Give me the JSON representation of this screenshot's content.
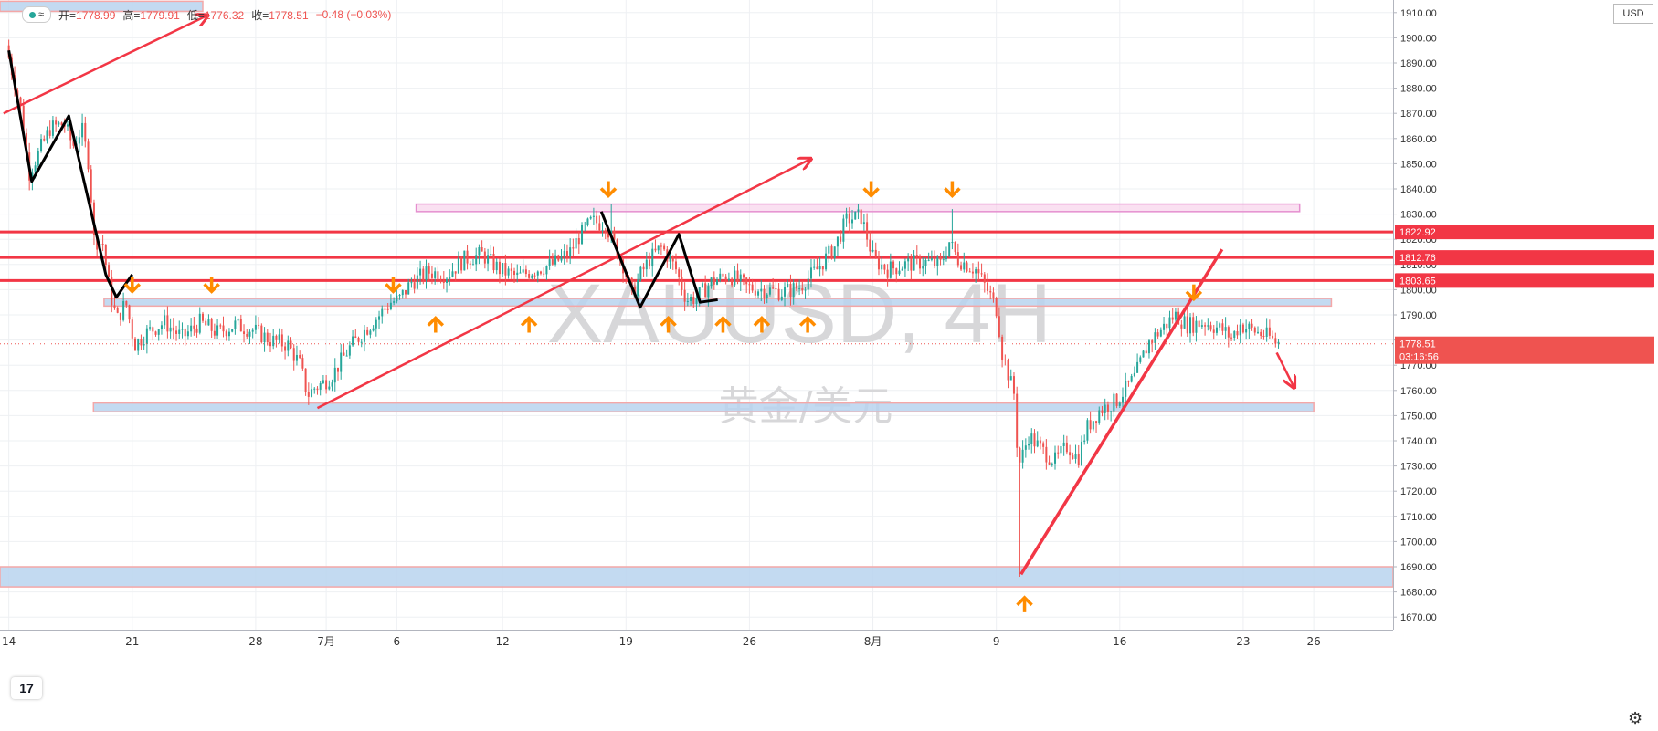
{
  "header": {
    "open_label": "开=",
    "open_value": "1778.99",
    "high_label": "高=",
    "high_value": "1779.91",
    "low_label": "低=",
    "low_value": "1776.32",
    "close_label": "收=",
    "close_value": "1778.51",
    "change_value": "−0.48 (−0.03%)",
    "visibility_icon": "eye-icon"
  },
  "currency": "USD",
  "watermark": {
    "symbol": "XAUUSD, 4H",
    "name": "黄金/美元"
  },
  "price_tags": {
    "current_price": "1778.51",
    "countdown": "03:16:56"
  },
  "colors": {
    "up": "#26a69a",
    "down": "#ef5350",
    "drawing_red": "#f23645",
    "zone_fill": "#b8d4ef",
    "zone_border": "#f4a7a7",
    "orange": "#ff8c00",
    "pink_zone": "#f5c6e6"
  },
  "chart_data": {
    "type": "candlestick",
    "symbol": "XAUUSD",
    "timeframe": "4H",
    "ylim": [
      1665,
      1915
    ],
    "y_ticks": [
      1670,
      1680,
      1690,
      1700,
      1710,
      1720,
      1730,
      1740,
      1750,
      1760,
      1770,
      1780,
      1790,
      1800,
      1810,
      1820,
      1830,
      1840,
      1850,
      1860,
      1870,
      1880,
      1890,
      1900,
      1910
    ],
    "x_tick_labels": [
      "14",
      "21",
      "28",
      "7月",
      "6",
      "12",
      "19",
      "26",
      "8月",
      "9",
      "16",
      "23",
      "26"
    ],
    "x_tick_days": [
      0,
      7,
      14,
      18,
      22,
      28,
      35,
      42,
      49,
      56,
      63,
      70,
      74
    ],
    "x_range_days": [
      -0.5,
      78.5
    ],
    "waypoints": [
      [
        0,
        1897
      ],
      [
        0.9,
        1870
      ],
      [
        1.3,
        1846
      ],
      [
        2.5,
        1864
      ],
      [
        3.3,
        1866
      ],
      [
        3.8,
        1857
      ],
      [
        4.3,
        1864
      ],
      [
        4.7,
        1850
      ],
      [
        5.0,
        1820
      ],
      [
        5.5,
        1818
      ],
      [
        5.9,
        1799
      ],
      [
        6.3,
        1788
      ],
      [
        6.8,
        1795
      ],
      [
        7.3,
        1778
      ],
      [
        8.0,
        1783
      ],
      [
        9.0,
        1787
      ],
      [
        10.0,
        1781
      ],
      [
        11.0,
        1787
      ],
      [
        12.0,
        1783
      ],
      [
        13.0,
        1786
      ],
      [
        14.0,
        1784
      ],
      [
        15.0,
        1780
      ],
      [
        16.0,
        1778
      ],
      [
        16.7,
        1770
      ],
      [
        17.1,
        1758
      ],
      [
        17.5,
        1761
      ],
      [
        18.0,
        1763
      ],
      [
        18.5,
        1766
      ],
      [
        19.5,
        1777
      ],
      [
        20.5,
        1785
      ],
      [
        21.2,
        1790
      ],
      [
        21.8,
        1795
      ],
      [
        22.3,
        1796
      ],
      [
        23.0,
        1803
      ],
      [
        24.0,
        1807
      ],
      [
        25.0,
        1806
      ],
      [
        26.0,
        1812
      ],
      [
        27.0,
        1814
      ],
      [
        28.0,
        1808
      ],
      [
        29.0,
        1805
      ],
      [
        30.0,
        1808
      ],
      [
        31.0,
        1810
      ],
      [
        32.0,
        1815
      ],
      [
        32.5,
        1821
      ],
      [
        33.2,
        1827
      ],
      [
        34.0,
        1826
      ],
      [
        35.0,
        1810
      ],
      [
        35.5,
        1798
      ],
      [
        36.0,
        1806
      ],
      [
        36.5,
        1812
      ],
      [
        37.2,
        1817
      ],
      [
        38.0,
        1808
      ],
      [
        38.6,
        1796
      ],
      [
        39.2,
        1797
      ],
      [
        40.0,
        1803
      ],
      [
        41.0,
        1806
      ],
      [
        42.0,
        1801
      ],
      [
        43.0,
        1800
      ],
      [
        44.0,
        1799
      ],
      [
        45.0,
        1801
      ],
      [
        46.0,
        1808
      ],
      [
        47.0,
        1817
      ],
      [
        47.7,
        1828
      ],
      [
        48.5,
        1829
      ],
      [
        49.2,
        1812
      ],
      [
        50.0,
        1808
      ],
      [
        51.0,
        1810
      ],
      [
        52.0,
        1811
      ],
      [
        53.0,
        1810
      ],
      [
        53.5,
        1819
      ],
      [
        54.0,
        1812
      ],
      [
        55.0,
        1808
      ],
      [
        55.8,
        1798
      ],
      [
        56.2,
        1792
      ],
      [
        56.5,
        1775
      ],
      [
        56.9,
        1765
      ],
      [
        57.2,
        1758
      ],
      [
        57.4,
        1730
      ],
      [
        57.6,
        1733
      ],
      [
        58.0,
        1742
      ],
      [
        58.8,
        1736
      ],
      [
        59.5,
        1732
      ],
      [
        60.2,
        1738
      ],
      [
        60.8,
        1733
      ],
      [
        61.3,
        1745
      ],
      [
        62.0,
        1752
      ],
      [
        63.0,
        1756
      ],
      [
        64.0,
        1765
      ],
      [
        64.8,
        1779
      ],
      [
        65.5,
        1784
      ],
      [
        66.3,
        1790
      ],
      [
        67.0,
        1786
      ],
      [
        68.0,
        1787
      ],
      [
        69.0,
        1784
      ],
      [
        69.5,
        1781
      ],
      [
        70.0,
        1786
      ],
      [
        71.0,
        1783
      ],
      [
        71.7,
        1781
      ],
      [
        72.0,
        1779
      ]
    ],
    "spikes": [
      {
        "day": 57.4,
        "low": 1686
      },
      {
        "day": 53.5,
        "high": 1832
      },
      {
        "day": 48.2,
        "high": 1834
      },
      {
        "day": 34.2,
        "high": 1834
      }
    ],
    "horizontal_lines": [
      1822.92,
      1812.76,
      1803.65
    ],
    "zones": [
      {
        "x1": -0.5,
        "x2": 11.0,
        "y1": 1910.5,
        "y2": 1914.5,
        "style": "blue"
      },
      {
        "x1": 5.4,
        "x2": 75.0,
        "y1": 1793.5,
        "y2": 1796.5,
        "style": "blue"
      },
      {
        "x1": 4.8,
        "x2": 74.0,
        "y1": 1751.5,
        "y2": 1755,
        "style": "blue"
      },
      {
        "x1": -0.5,
        "x2": 78.5,
        "y1": 1682,
        "y2": 1690,
        "style": "blue"
      },
      {
        "x1": 23.1,
        "x2": 73.2,
        "y1": 1831,
        "y2": 1834,
        "style": "pink"
      }
    ],
    "price_labels": [
      "1822.92",
      "1812.76",
      "1803.65"
    ]
  }
}
